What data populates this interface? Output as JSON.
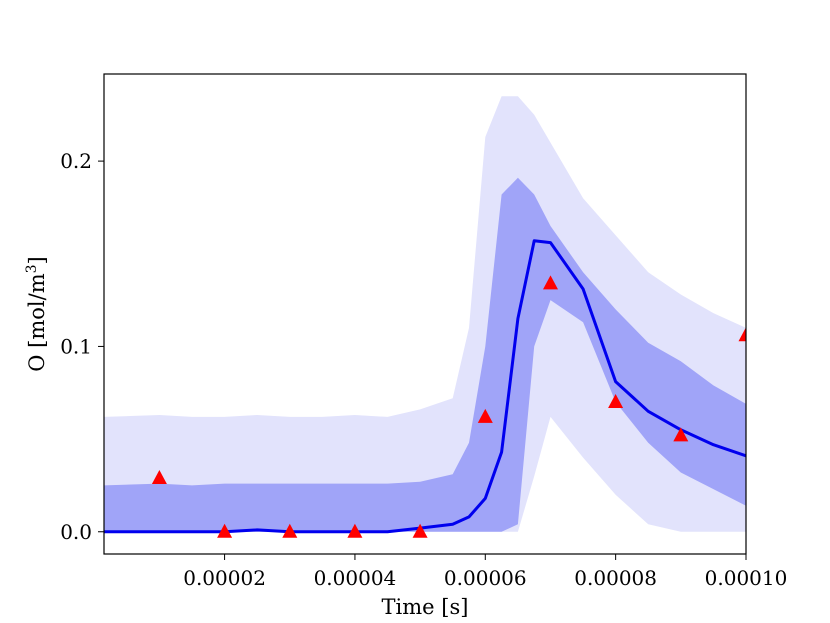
{
  "chart_data": {
    "type": "line",
    "xlabel": "Time [s]",
    "ylabel_main": "O [mol/m",
    "ylabel_sup": "3",
    "ylabel_tail": "]",
    "xlim": [
      1.5e-06,
      0.0001
    ],
    "ylim": [
      -0.012,
      0.247
    ],
    "x_ticks": [
      2e-05,
      4e-05,
      6e-05,
      8e-05,
      0.0001
    ],
    "x_tick_labels": [
      "0.00002",
      "0.00004",
      "0.00006",
      "0.00008",
      "0.00010"
    ],
    "y_ticks": [
      0.0,
      0.1,
      0.2
    ],
    "y_tick_labels": [
      "0.0",
      "0.1",
      "0.2"
    ],
    "grid": false,
    "colors": {
      "mean_line": "#0000ee",
      "inner_band": "#a0a4f8",
      "outer_band": "#e2e3fc",
      "observations": "#ff0000"
    },
    "series": [
      {
        "kind": "outer_band",
        "x": [
          1.5e-06,
          1e-05,
          1.5e-05,
          2e-05,
          2.5e-05,
          3e-05,
          3.5e-05,
          4e-05,
          4.5e-05,
          5e-05,
          5.5e-05,
          5.75e-05,
          6e-05,
          6.25e-05,
          6.5e-05,
          6.75e-05,
          7e-05,
          7.5e-05,
          8e-05,
          8.5e-05,
          9e-05,
          9.5e-05,
          0.0001
        ],
        "upper": [
          0.062,
          0.063,
          0.062,
          0.062,
          0.063,
          0.062,
          0.062,
          0.063,
          0.062,
          0.066,
          0.072,
          0.11,
          0.213,
          0.235,
          0.235,
          0.225,
          0.21,
          0.18,
          0.16,
          0.14,
          0.128,
          0.118,
          0.11
        ],
        "lower": [
          0.0,
          0.0,
          0.0,
          0.0,
          0.0,
          0.0,
          0.0,
          0.0,
          0.0,
          0.0,
          0.0,
          0.0,
          0.0,
          0.0,
          0.0,
          0.03,
          0.062,
          0.04,
          0.02,
          0.004,
          0.0,
          0.0,
          0.0
        ]
      },
      {
        "kind": "inner_band",
        "x": [
          1.5e-06,
          1e-05,
          1.5e-05,
          2e-05,
          2.5e-05,
          3e-05,
          3.5e-05,
          4e-05,
          4.5e-05,
          5e-05,
          5.5e-05,
          5.75e-05,
          6e-05,
          6.25e-05,
          6.5e-05,
          6.75e-05,
          7e-05,
          7.5e-05,
          8e-05,
          8.5e-05,
          9e-05,
          9.5e-05,
          0.0001
        ],
        "upper": [
          0.025,
          0.026,
          0.025,
          0.026,
          0.026,
          0.026,
          0.026,
          0.026,
          0.026,
          0.027,
          0.031,
          0.048,
          0.1,
          0.182,
          0.191,
          0.182,
          0.165,
          0.14,
          0.12,
          0.102,
          0.092,
          0.079,
          0.069
        ],
        "lower": [
          0.0,
          0.0,
          0.0,
          0.0,
          0.0,
          0.0,
          0.0,
          0.0,
          0.0,
          0.0,
          0.0,
          0.0,
          0.0,
          0.0,
          0.004,
          0.1,
          0.125,
          0.113,
          0.07,
          0.048,
          0.032,
          0.023,
          0.014
        ]
      },
      {
        "kind": "mean",
        "x": [
          1.5e-06,
          1e-05,
          1.5e-05,
          2e-05,
          2.5e-05,
          3e-05,
          3.5e-05,
          4e-05,
          4.5e-05,
          5e-05,
          5.5e-05,
          5.75e-05,
          6e-05,
          6.25e-05,
          6.5e-05,
          6.75e-05,
          7e-05,
          7.5e-05,
          8e-05,
          8.5e-05,
          9e-05,
          9.5e-05,
          0.0001
        ],
        "y": [
          0.0,
          0.0,
          0.0,
          0.0,
          0.001,
          0.0,
          0.0,
          0.0,
          0.0,
          0.002,
          0.004,
          0.008,
          0.018,
          0.043,
          0.115,
          0.157,
          0.156,
          0.131,
          0.081,
          0.065,
          0.055,
          0.047,
          0.041
        ]
      },
      {
        "kind": "observations",
        "x": [
          1e-05,
          2e-05,
          3e-05,
          4e-05,
          5e-05,
          6e-05,
          7e-05,
          8e-05,
          9e-05,
          0.0001
        ],
        "y": [
          0.029,
          0.0,
          0.0,
          0.0,
          0.0,
          0.062,
          0.134,
          0.07,
          0.052,
          0.106
        ]
      }
    ]
  }
}
